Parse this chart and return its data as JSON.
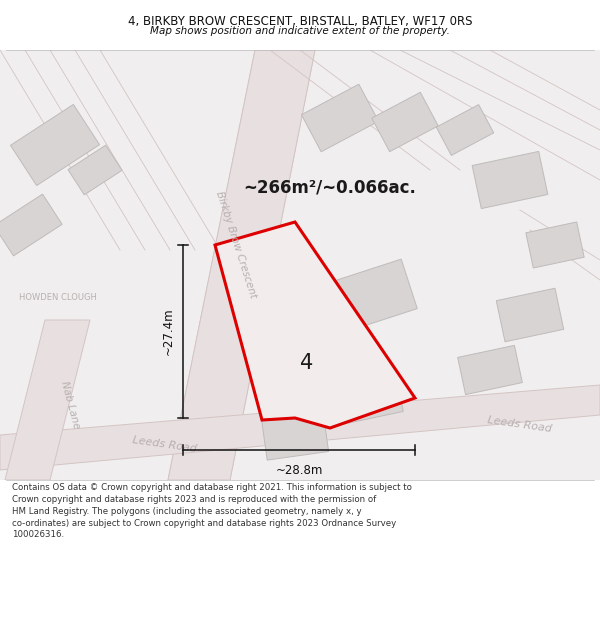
{
  "title": "4, BIRKBY BROW CRESCENT, BIRSTALL, BATLEY, WF17 0RS",
  "subtitle": "Map shows position and indicative extent of the property.",
  "footer": "Contains OS data © Crown copyright and database right 2021. This information is subject to\nCrown copyright and database rights 2023 and is reproduced with the permission of\nHM Land Registry. The polygons (including the associated geometry, namely x, y\nco-ordinates) are subject to Crown copyright and database rights 2023 Ordnance Survey\n100026316.",
  "area_label": "~266m²/~0.066ac.",
  "number_label": "4",
  "dim_h": "~27.4m",
  "dim_w": "~28.8m",
  "map_bg": "#f0eeee",
  "road_fill": "#e8e0e0",
  "road_edge": "#d4c4c4",
  "building_fill": "#d8d4d4",
  "building_edge": "#c0bbbb",
  "plot_color": "#dd0000",
  "plot_fill": "#f2ecec",
  "street_label_color": "#b8b0b0",
  "area_label_color": "#1a1a1a",
  "dim_color": "#111111",
  "title_color": "#111111",
  "footer_color": "#333333"
}
